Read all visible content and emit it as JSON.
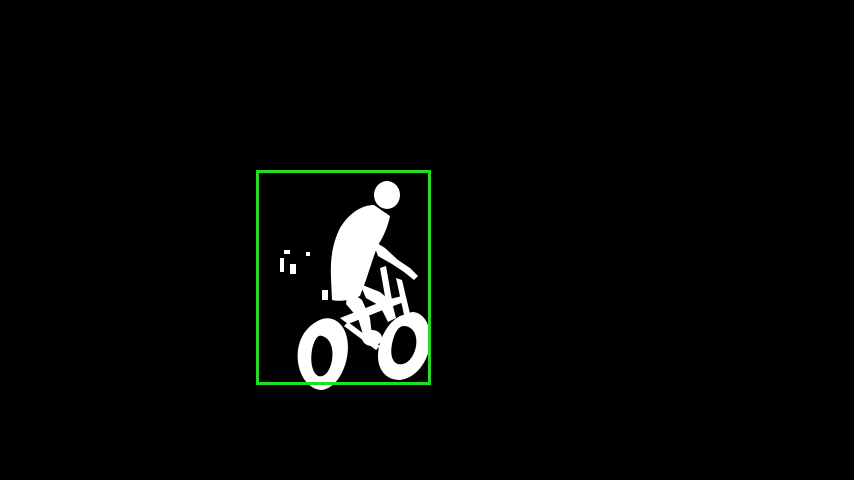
{
  "scene": {
    "background_color": "#000000",
    "mask_color": "#ffffff",
    "box_color": "#22dd22",
    "subject": "person-on-bicycle-silhouette"
  }
}
